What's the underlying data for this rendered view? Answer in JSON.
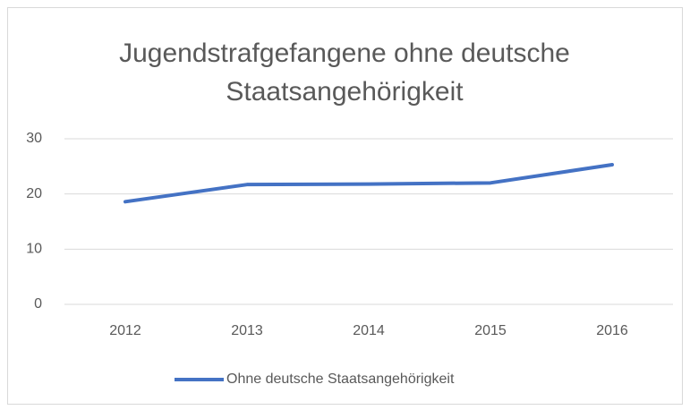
{
  "chart_data": {
    "type": "line",
    "title": "Jugendstrafgefangene ohne deutsche Staatsangehörigkeit",
    "categories": [
      "2012",
      "2013",
      "2014",
      "2015",
      "2016"
    ],
    "series": [
      {
        "name": "Ohne deutsche Staatsangehörigkeit",
        "color": "#4472c4",
        "values": [
          18.6,
          21.7,
          21.8,
          22.0,
          25.3
        ]
      }
    ],
    "ylim": [
      0,
      30
    ],
    "yticks": [
      0,
      10,
      20,
      30
    ],
    "grid": true,
    "legend": "bottom"
  }
}
